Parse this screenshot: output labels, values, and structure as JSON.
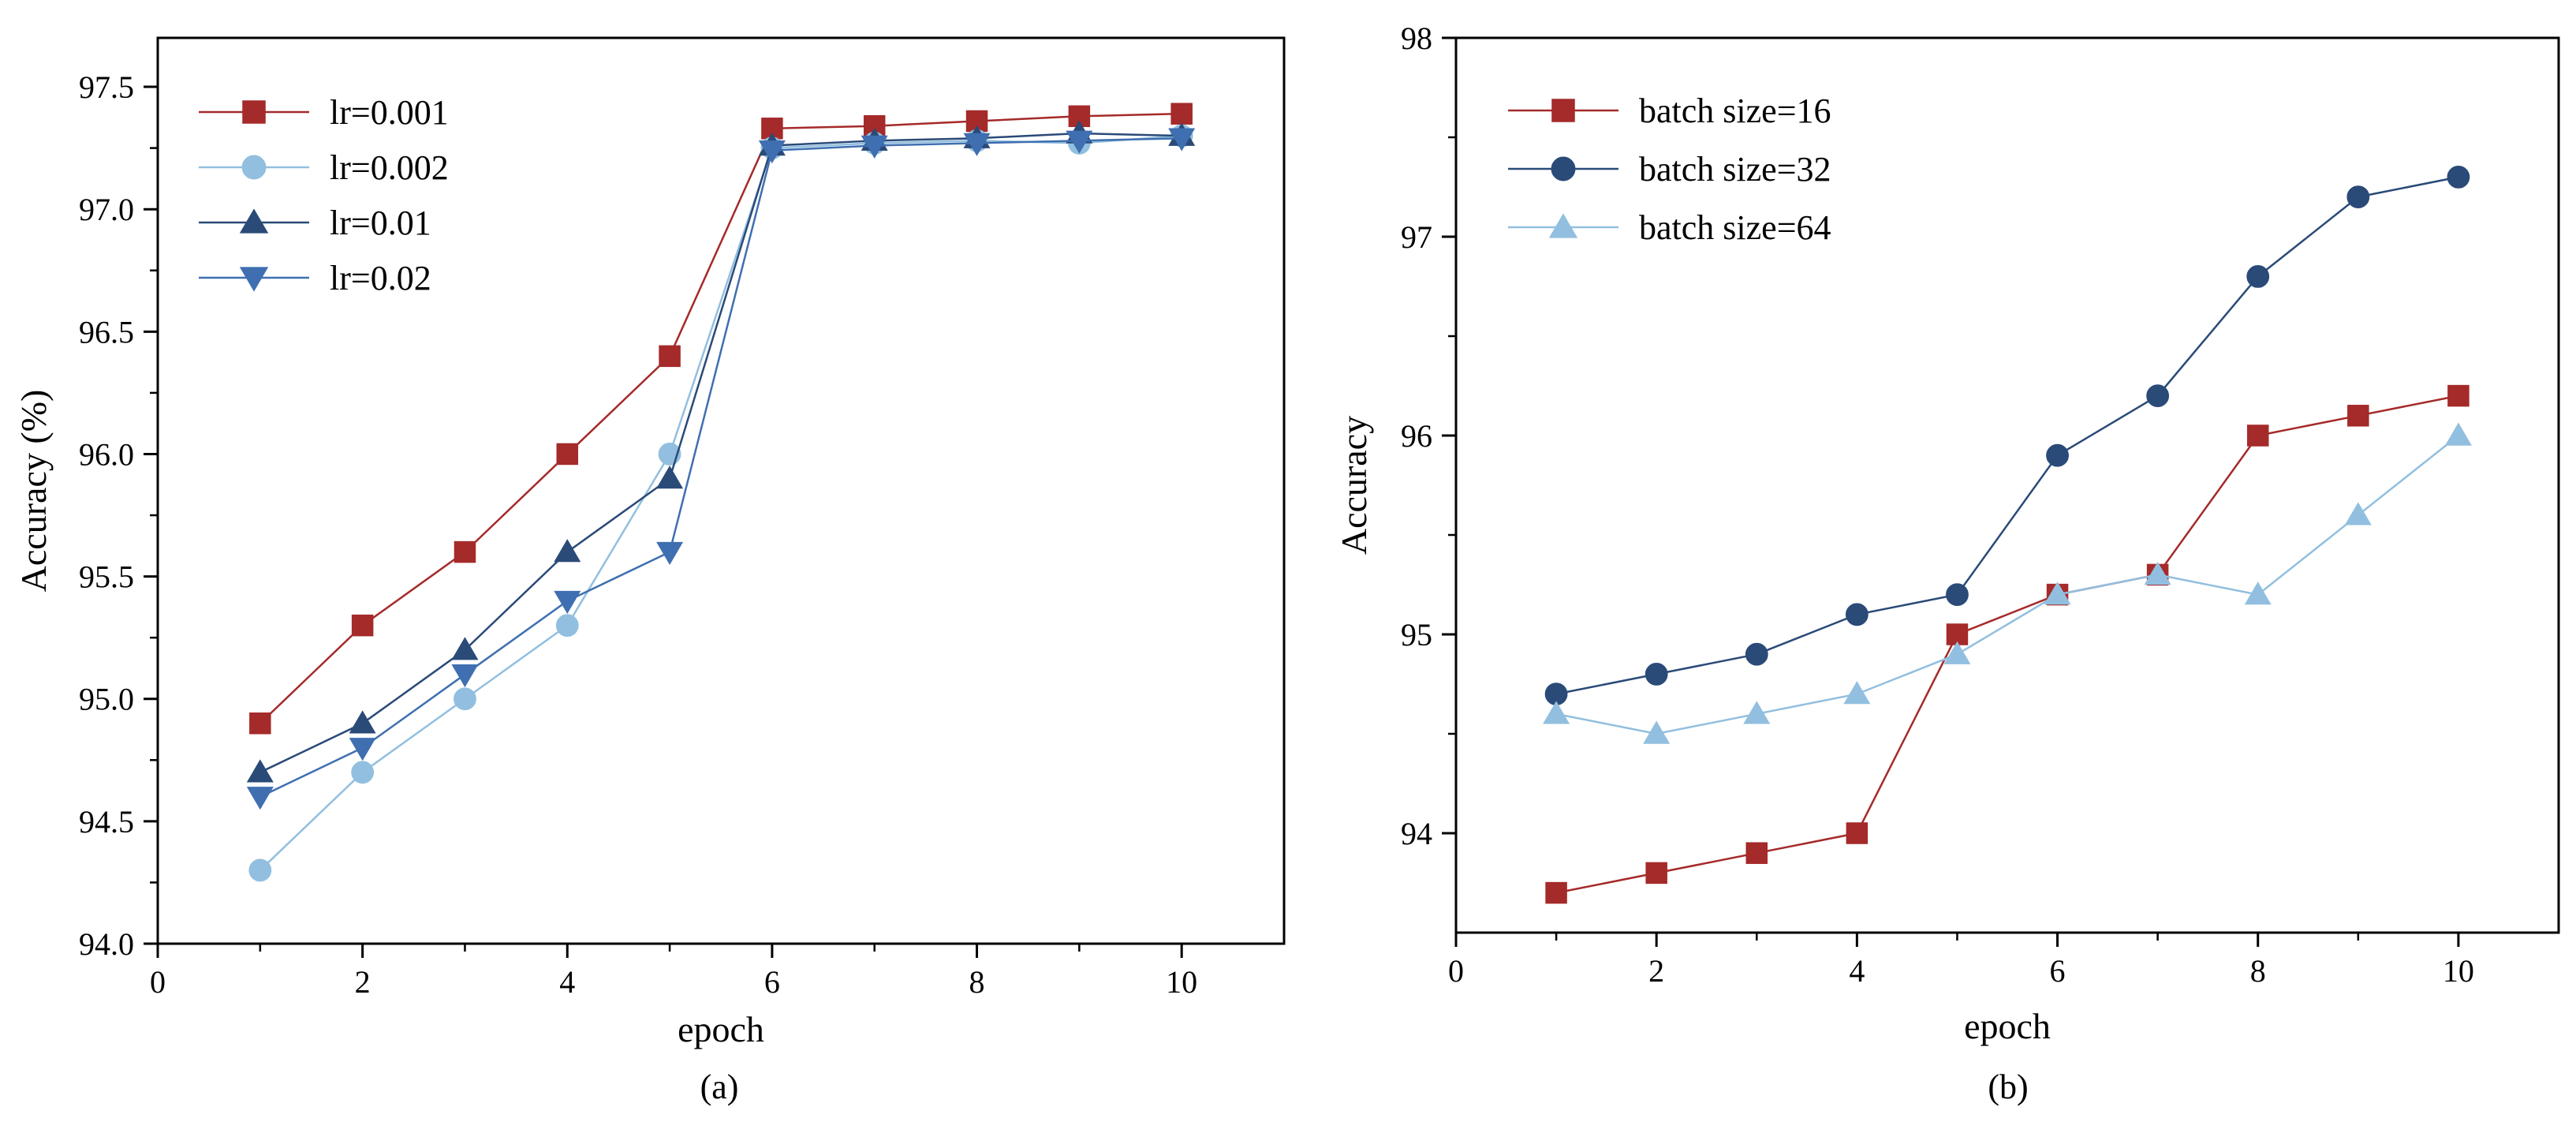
{
  "chart_data": [
    {
      "type": "line",
      "caption": "(a)",
      "xlabel": "epoch",
      "ylabel": "Accuracy (%)",
      "xlim": [
        0,
        11
      ],
      "ylim": [
        94.0,
        97.7
      ],
      "xticks": [
        0,
        2,
        4,
        6,
        8,
        10
      ],
      "yticks": [
        94.0,
        94.5,
        95.0,
        95.5,
        96.0,
        96.5,
        97.0,
        97.5
      ],
      "tick_format_decimals": 1,
      "grid": false,
      "legend_position": "top-left",
      "x": [
        1,
        2,
        3,
        4,
        5,
        6,
        7,
        8,
        9,
        10
      ],
      "series": [
        {
          "name": "lr=0.001",
          "marker": "square",
          "color": "#a52a2a",
          "values": [
            94.9,
            95.3,
            95.6,
            96.0,
            96.4,
            97.33,
            97.34,
            97.36,
            97.38,
            97.39
          ]
        },
        {
          "name": "lr=0.002",
          "marker": "circle",
          "color": "#92bfdf",
          "values": [
            94.3,
            94.7,
            95.0,
            95.3,
            96.0,
            97.25,
            97.27,
            97.28,
            97.27,
            97.3
          ]
        },
        {
          "name": "lr=0.01",
          "marker": "triangle-up",
          "color": "#2a4a78",
          "values": [
            94.7,
            94.9,
            95.2,
            95.6,
            95.9,
            97.26,
            97.28,
            97.29,
            97.31,
            97.3
          ]
        },
        {
          "name": "lr=0.02",
          "marker": "triangle-down",
          "color": "#3f6fb0",
          "values": [
            94.6,
            94.8,
            95.1,
            95.4,
            95.6,
            97.24,
            97.26,
            97.27,
            97.28,
            97.29
          ]
        }
      ]
    },
    {
      "type": "line",
      "caption": "(b)",
      "xlabel": "epoch",
      "ylabel": "Accuracy",
      "xlim": [
        0,
        11
      ],
      "ylim": [
        93.5,
        98
      ],
      "xticks": [
        0,
        2,
        4,
        6,
        8,
        10
      ],
      "yticks": [
        94,
        95,
        96,
        97,
        98
      ],
      "tick_format_decimals": 0,
      "grid": false,
      "legend_position": "top-left",
      "x": [
        1,
        2,
        3,
        4,
        5,
        6,
        7,
        8,
        9,
        10
      ],
      "series": [
        {
          "name": "batch size=16",
          "marker": "square",
          "color": "#a52a2a",
          "values": [
            93.7,
            93.8,
            93.9,
            94.0,
            95.0,
            95.2,
            95.3,
            96.0,
            96.1,
            96.2
          ]
        },
        {
          "name": "batch size=32",
          "marker": "circle",
          "color": "#2a4a78",
          "values": [
            94.7,
            94.8,
            94.9,
            95.1,
            95.2,
            95.9,
            96.2,
            96.8,
            97.2,
            97.3
          ]
        },
        {
          "name": "batch size=64",
          "marker": "triangle-up",
          "color": "#92bfdf",
          "values": [
            94.6,
            94.5,
            94.6,
            94.7,
            94.9,
            95.2,
            95.3,
            95.2,
            95.6,
            96.0
          ]
        }
      ]
    }
  ]
}
